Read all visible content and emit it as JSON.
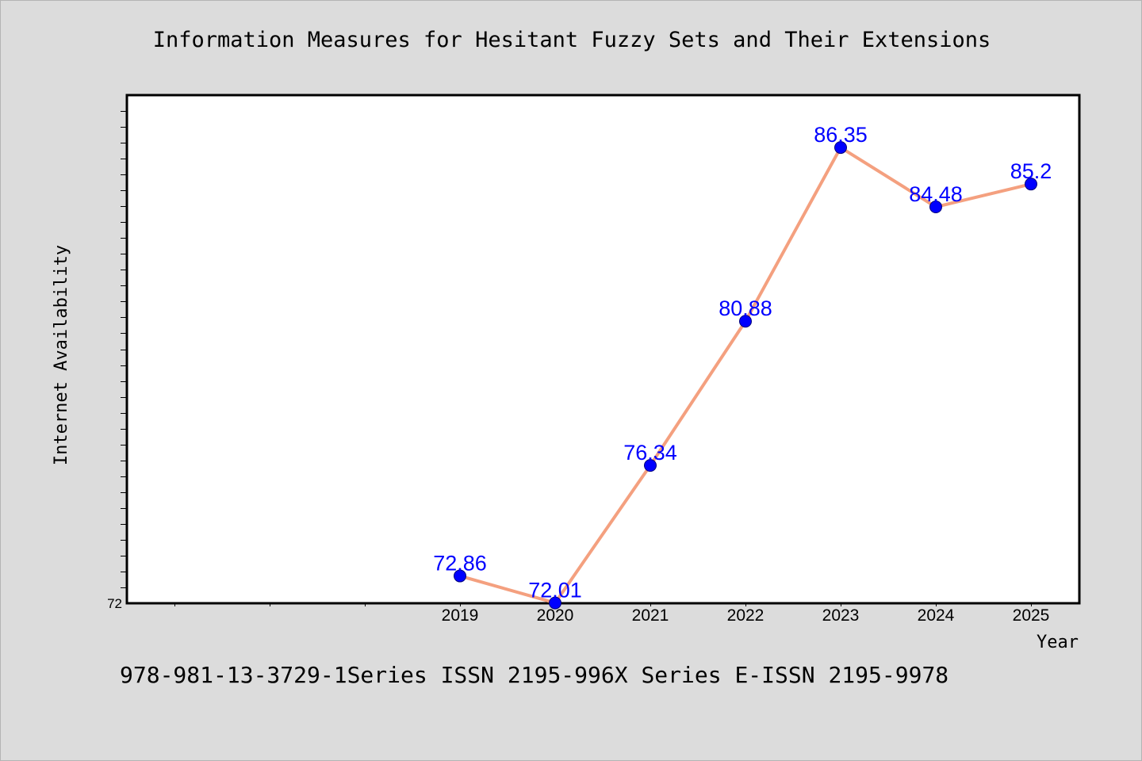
{
  "title": "Information Measures for Hesitant Fuzzy Sets and Their Extensions",
  "footer": "978-981-13-3729-1Series ISSN 2195-996X Series E-ISSN 2195-9978",
  "colors": {
    "background": "#dcdcdc",
    "plot_background": "#ffffff",
    "line": "#f4a07f",
    "marker": "#0000ff",
    "label": "#0000ff"
  },
  "chart_data": {
    "type": "line",
    "title": "Information Measures for Hesitant Fuzzy Sets and Their Extensions",
    "xlabel": "Year",
    "ylabel": "Internet Availability",
    "categories": [
      "2019",
      "2020",
      "2021",
      "2022",
      "2023",
      "2024",
      "2025"
    ],
    "series": [
      {
        "values": [
          72.86,
          72.01,
          76.34,
          80.88,
          86.35,
          84.48,
          85.2
        ]
      }
    ],
    "data_labels": [
      "72.86",
      "72.01",
      "76.34",
      "80.88",
      "86.35",
      "84.48",
      "85.2"
    ],
    "y_tick_labels": [
      "72"
    ],
    "ylim": [
      72,
      88
    ],
    "x_slots": 10,
    "grid": false,
    "legend": "none"
  }
}
